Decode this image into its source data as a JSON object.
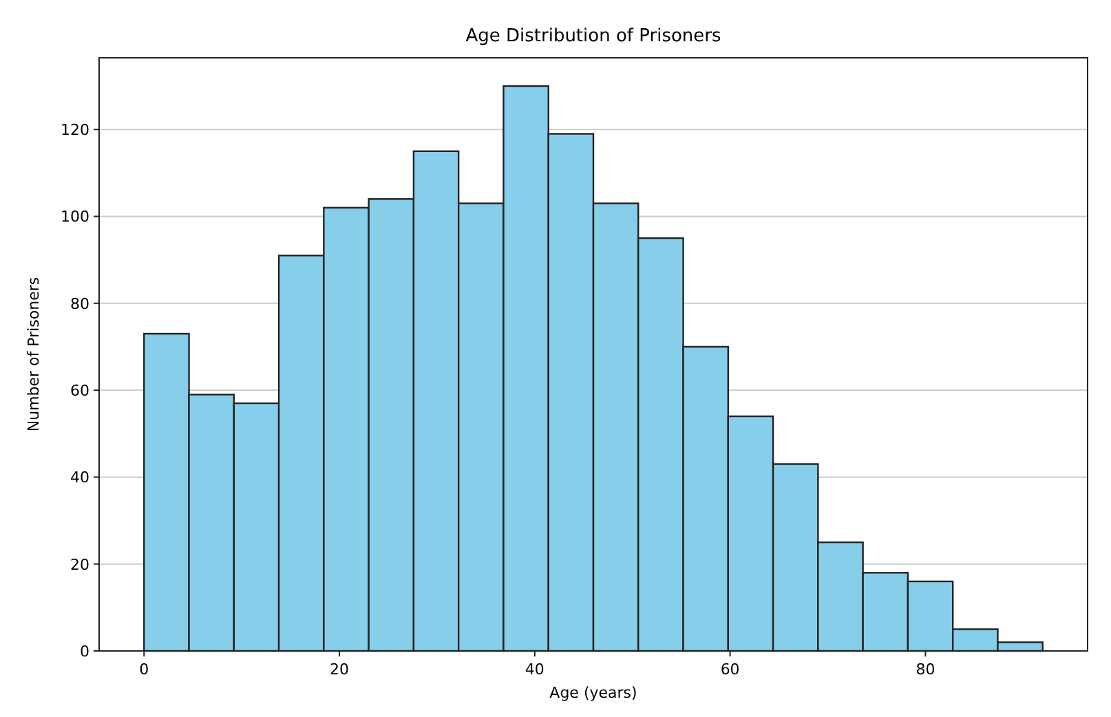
{
  "chart_data": {
    "type": "histogram",
    "title": "Age Distribution of Prisoners",
    "xlabel": "Age (years)",
    "ylabel": "Number of Prisoners",
    "bins": [
      0,
      4.6,
      9.2,
      13.8,
      18.4,
      23,
      27.6,
      32.2,
      36.8,
      41.4,
      46,
      50.6,
      55.2,
      59.8,
      64.4,
      69,
      73.6,
      78.2,
      82.8,
      87.4,
      92
    ],
    "values": [
      73,
      59,
      57,
      91,
      102,
      104,
      115,
      103,
      130,
      119,
      103,
      95,
      70,
      54,
      43,
      25,
      18,
      16,
      5,
      2
    ],
    "color": "#87ceeb",
    "xlim": [
      -4.6,
      96.6
    ],
    "xticks": [
      0,
      20,
      40,
      60,
      80
    ],
    "ylim": [
      0,
      136.5
    ],
    "yticks": [
      0,
      20,
      40,
      60,
      80,
      100,
      120
    ],
    "grid": "y"
  }
}
